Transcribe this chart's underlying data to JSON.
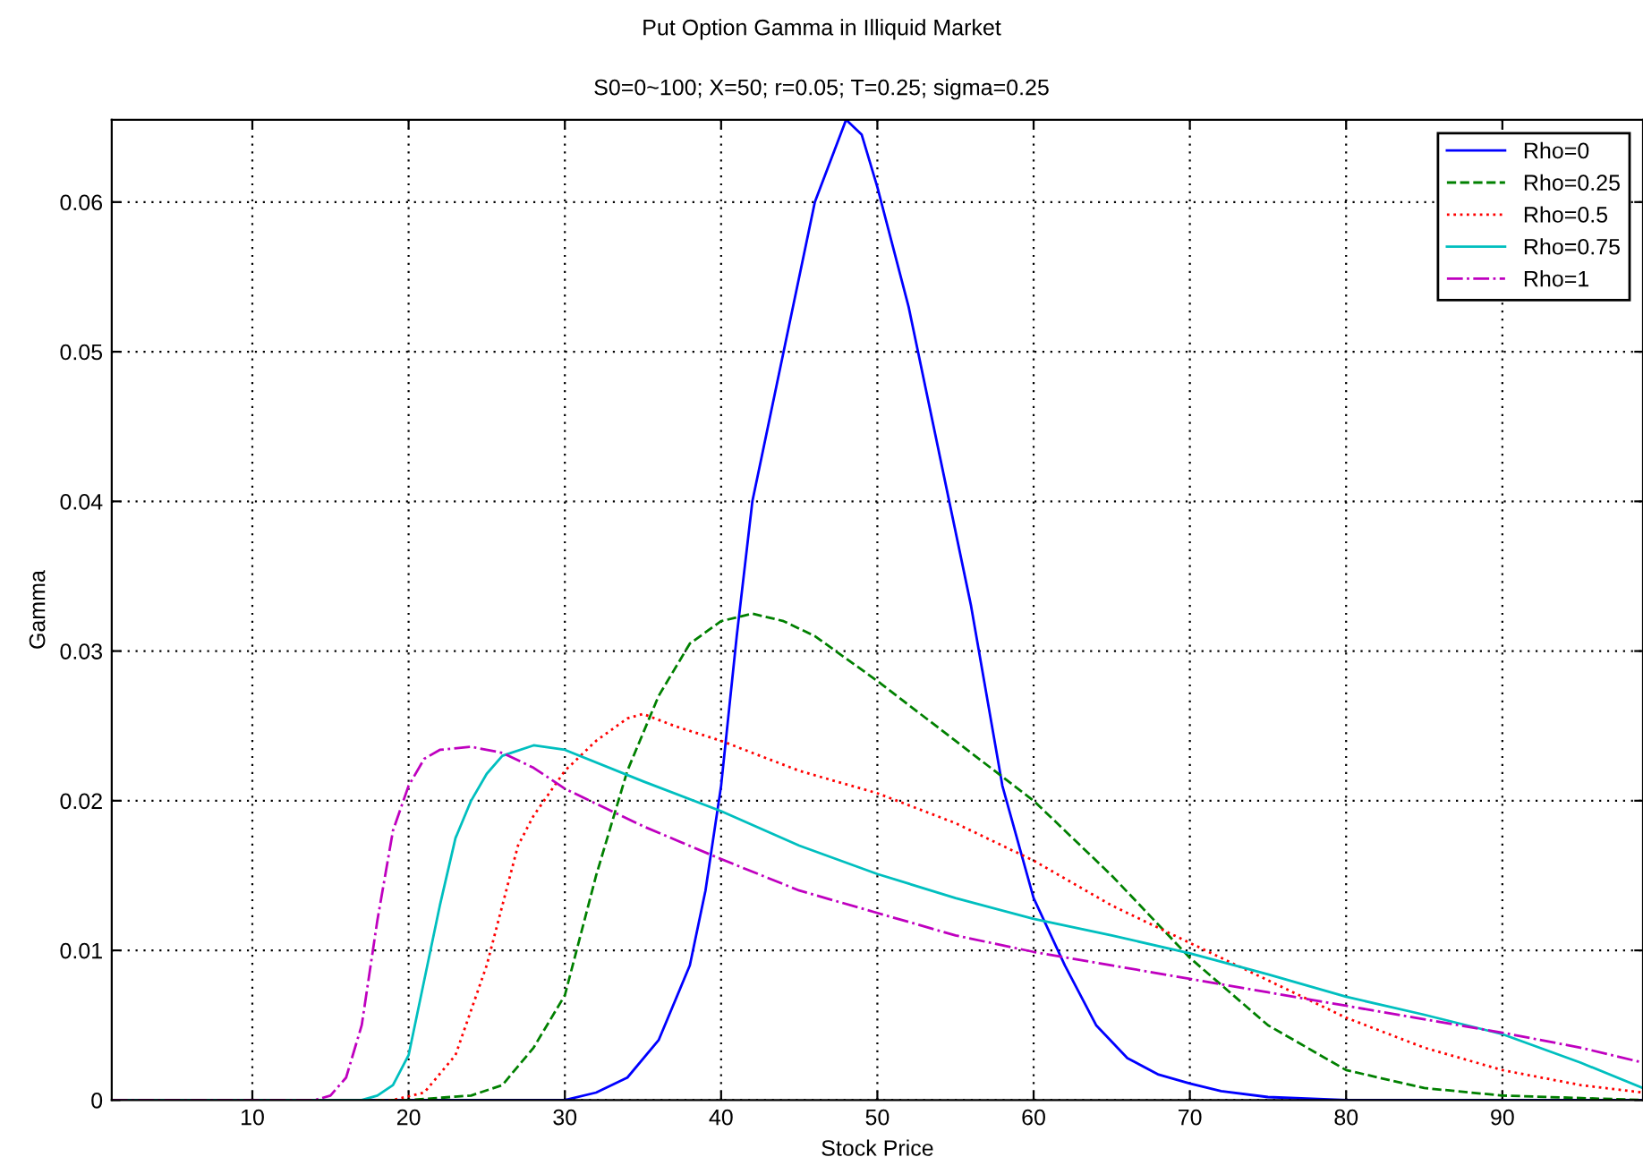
{
  "chart_data": {
    "type": "line",
    "title": "Put Option Gamma in Illiquid Market",
    "subtitle": "S0=0~100; X=50; r=0.05; T=0.25; sigma=0.25",
    "xlabel": "Stock Price",
    "ylabel": "Gamma",
    "xlim": [
      1,
      99
    ],
    "ylim": [
      0,
      0.0655
    ],
    "xticks": [
      10,
      20,
      30,
      40,
      50,
      60,
      70,
      80,
      90
    ],
    "yticks": [
      0,
      0.01,
      0.02,
      0.03,
      0.04,
      0.05,
      0.06
    ],
    "grid": true,
    "legend": "top right",
    "series": [
      {
        "name": "Rho=0",
        "color": "#0000ff",
        "line_style": "solid",
        "x": [
          1,
          30,
          32,
          34,
          36,
          38,
          39,
          40,
          41,
          42,
          44,
          46,
          48,
          49,
          50,
          52,
          54,
          56,
          58,
          60,
          62,
          64,
          66,
          68,
          70,
          72,
          75,
          80,
          99
        ],
        "values": [
          0,
          0,
          0.0005,
          0.0015,
          0.004,
          0.009,
          0.014,
          0.021,
          0.031,
          0.04,
          0.05,
          0.06,
          0.0655,
          0.0645,
          0.061,
          0.053,
          0.043,
          0.033,
          0.021,
          0.0135,
          0.009,
          0.005,
          0.0028,
          0.0017,
          0.0011,
          0.0006,
          0.0002,
          0,
          0
        ]
      },
      {
        "name": "Rho=0.25",
        "color": "#008000",
        "line_style": "dashed",
        "x": [
          1,
          20,
          24,
          26,
          28,
          30,
          31,
          32,
          34,
          36,
          38,
          40,
          42,
          44,
          46,
          48,
          50,
          55,
          60,
          65,
          70,
          75,
          80,
          85,
          90,
          99
        ],
        "values": [
          0,
          0,
          0.0003,
          0.001,
          0.0035,
          0.007,
          0.011,
          0.015,
          0.022,
          0.027,
          0.0305,
          0.032,
          0.0325,
          0.032,
          0.031,
          0.0295,
          0.028,
          0.024,
          0.02,
          0.015,
          0.0095,
          0.005,
          0.002,
          0.0008,
          0.0003,
          0
        ]
      },
      {
        "name": "Rho=0.5",
        "color": "#ff0000",
        "line_style": "dotted",
        "x": [
          1,
          19,
          21,
          23,
          25,
          26,
          27,
          28,
          30,
          32,
          34,
          35,
          37,
          40,
          45,
          50,
          55,
          60,
          65,
          70,
          75,
          80,
          85,
          90,
          95,
          99
        ],
        "values": [
          0,
          0,
          0.0005,
          0.003,
          0.009,
          0.013,
          0.017,
          0.019,
          0.022,
          0.024,
          0.0255,
          0.0258,
          0.025,
          0.024,
          0.022,
          0.0205,
          0.0185,
          0.016,
          0.013,
          0.0105,
          0.008,
          0.0055,
          0.0035,
          0.002,
          0.001,
          0.0005
        ]
      },
      {
        "name": "Rho=0.75",
        "color": "#00bfbf",
        "line_style": "solid",
        "x": [
          1,
          17,
          18,
          19,
          20,
          21,
          22,
          23,
          24,
          25,
          26,
          28,
          30,
          35,
          40,
          45,
          50,
          55,
          60,
          65,
          70,
          75,
          80,
          85,
          90,
          95,
          99
        ],
        "values": [
          0,
          0,
          0.0003,
          0.001,
          0.003,
          0.008,
          0.013,
          0.0175,
          0.02,
          0.0218,
          0.023,
          0.0237,
          0.0234,
          0.0213,
          0.0193,
          0.017,
          0.0151,
          0.0135,
          0.0121,
          0.011,
          0.0098,
          0.0084,
          0.0069,
          0.0057,
          0.0044,
          0.0025,
          0.0008
        ]
      },
      {
        "name": "Rho=1",
        "color": "#bf00bf",
        "line_style": "dashdot",
        "x": [
          1,
          14,
          15,
          16,
          17,
          18,
          19,
          20,
          21,
          22,
          24,
          26,
          28,
          30,
          35,
          40,
          45,
          50,
          55,
          60,
          65,
          70,
          75,
          80,
          85,
          90,
          95,
          99
        ],
        "values": [
          0,
          0,
          0.0003,
          0.0015,
          0.005,
          0.012,
          0.018,
          0.021,
          0.0228,
          0.0234,
          0.0236,
          0.0232,
          0.0222,
          0.0208,
          0.0183,
          0.0161,
          0.014,
          0.0125,
          0.011,
          0.0099,
          0.009,
          0.0081,
          0.0072,
          0.0063,
          0.0054,
          0.0045,
          0.0035,
          0.0025
        ]
      }
    ]
  }
}
